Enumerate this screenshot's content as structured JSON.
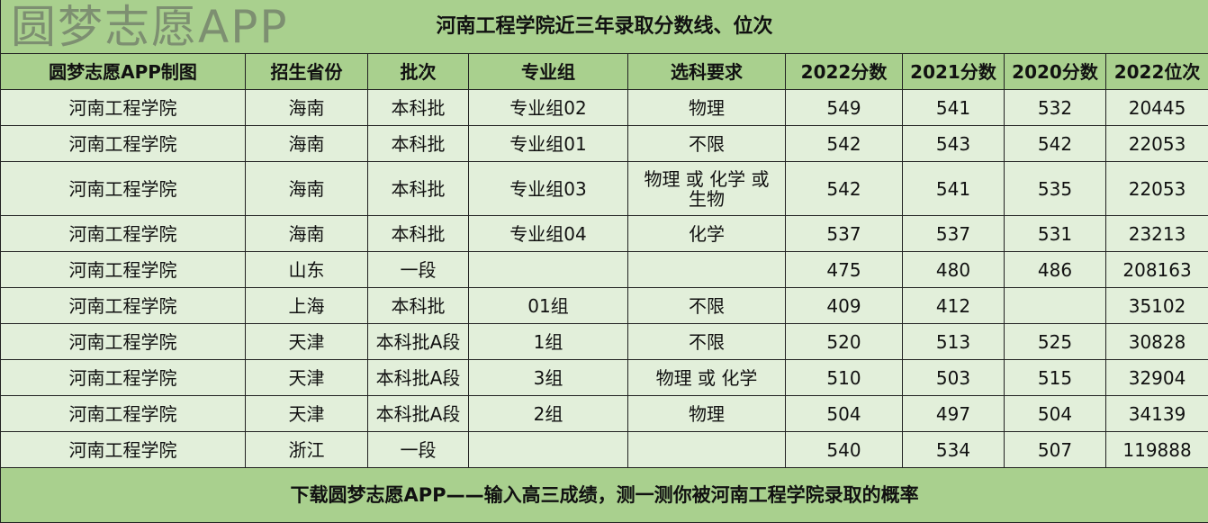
{
  "title": "河南工程学院近三年录取分数线、位次",
  "headers": [
    "圆梦志愿APP制图",
    "招生省份",
    "批次",
    "专业组",
    "选科要求",
    "2022分数",
    "2021分数",
    "2020分数",
    "2022位次"
  ],
  "rows": [
    [
      "河南工程学院",
      "海南",
      "本科批",
      "专业组02",
      "物理",
      "549",
      "541",
      "532",
      "20445"
    ],
    [
      "河南工程学院",
      "海南",
      "本科批",
      "专业组01",
      "不限",
      "542",
      "543",
      "542",
      "22053"
    ],
    [
      "河南工程学院",
      "海南",
      "本科批",
      "专业组03",
      "物理 或 化学 或 生物",
      "542",
      "541",
      "535",
      "22053"
    ],
    [
      "河南工程学院",
      "海南",
      "本科批",
      "专业组04",
      "化学",
      "537",
      "537",
      "531",
      "23213"
    ],
    [
      "河南工程学院",
      "山东",
      "一段",
      "",
      "",
      "475",
      "480",
      "486",
      "208163"
    ],
    [
      "河南工程学院",
      "上海",
      "本科批",
      "01组",
      "不限",
      "409",
      "412",
      "",
      "35102"
    ],
    [
      "河南工程学院",
      "天津",
      "本科批A段",
      "1组",
      "不限",
      "520",
      "513",
      "525",
      "30828"
    ],
    [
      "河南工程学院",
      "天津",
      "本科批A段",
      "3组",
      "物理 或 化学",
      "510",
      "503",
      "515",
      "32904"
    ],
    [
      "河南工程学院",
      "天津",
      "本科批A段",
      "2组",
      "物理",
      "504",
      "497",
      "504",
      "34139"
    ],
    [
      "河南工程学院",
      "浙江",
      "一段",
      "",
      "",
      "540",
      "534",
      "507",
      "119888"
    ]
  ],
  "footer": "下载圆梦志愿APP——输入高三成绩，测一测你被河南工程学院录取的概率",
  "watermark": "圆梦志愿APP",
  "colors": {
    "header": "#a9d08e",
    "row": "#e2efda"
  }
}
